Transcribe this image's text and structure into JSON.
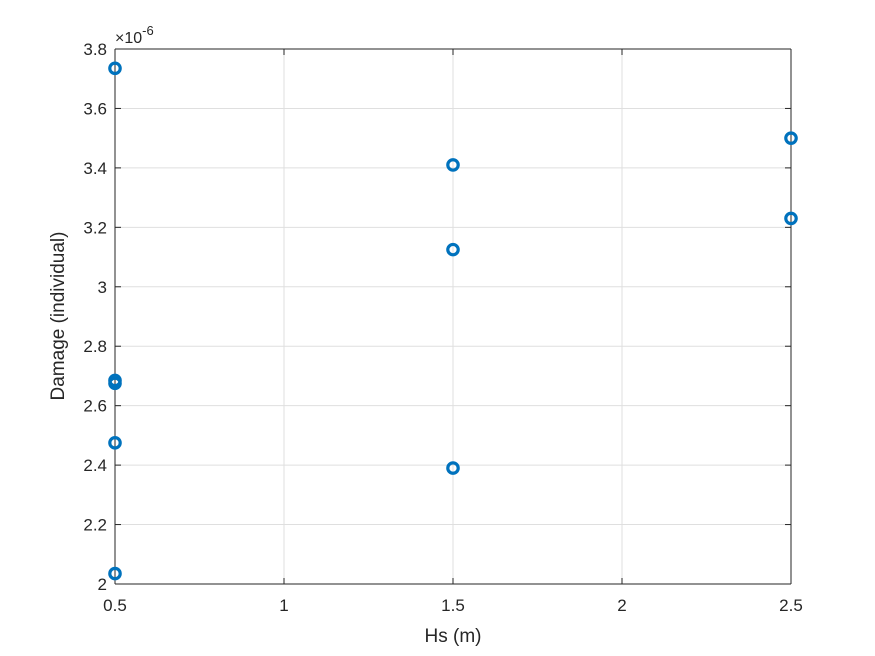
{
  "chart_data": {
    "type": "scatter",
    "title": "",
    "xlabel": "Hs (m)",
    "ylabel": "Damage (individual)",
    "y_exponent_label": "×10",
    "y_exponent_power": "-6",
    "xlim": [
      0.5,
      2.5
    ],
    "ylim": [
      2.0,
      3.8
    ],
    "xticks": [
      0.5,
      1,
      1.5,
      2,
      2.5
    ],
    "xtick_labels": [
      "0.5",
      "1",
      "1.5",
      "2",
      "2.5"
    ],
    "yticks": [
      2,
      2.2,
      2.4,
      2.6,
      2.8,
      3,
      3.2,
      3.4,
      3.6,
      3.8
    ],
    "ytick_labels": [
      "2",
      "2.2",
      "2.4",
      "2.6",
      "2.8",
      "3",
      "3.2",
      "3.4",
      "3.6",
      "3.8"
    ],
    "grid": true,
    "marker": "circle-open",
    "color": "#0072BD",
    "series": [
      {
        "x": [
          0.5,
          0.5,
          0.5,
          0.5,
          0.5,
          1.5,
          1.5,
          1.5,
          2.5,
          2.5
        ],
        "y": [
          3.735,
          2.685,
          2.675,
          2.475,
          2.035,
          3.41,
          3.125,
          2.39,
          3.5,
          3.23
        ]
      }
    ]
  }
}
